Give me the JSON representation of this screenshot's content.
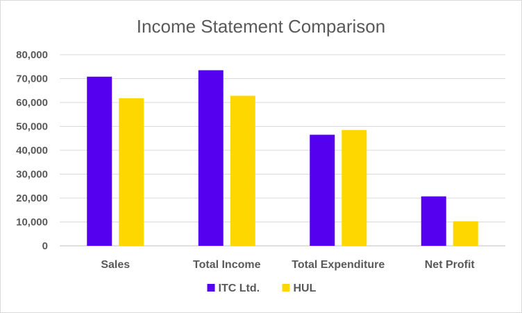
{
  "chart_data": {
    "type": "bar",
    "title": "Income Statement Comparison",
    "categories": [
      "Sales",
      "Total Income",
      "Total Expenditure",
      "Net Profit"
    ],
    "series": [
      {
        "name": "ITC Ltd.",
        "color": "#5500ee",
        "values": [
          70800,
          73500,
          46500,
          20700
        ]
      },
      {
        "name": "HUL",
        "color": "#ffd700",
        "values": [
          61800,
          62800,
          48500,
          10300
        ]
      }
    ],
    "ylim": [
      0,
      80000
    ],
    "yticks": [
      "0",
      "10,000",
      "20,000",
      "30,000",
      "40,000",
      "50,000",
      "60,000",
      "70,000",
      "80,000"
    ],
    "ytick_values": [
      0,
      10000,
      20000,
      30000,
      40000,
      50000,
      60000,
      70000,
      80000
    ],
    "grid": true,
    "legend_position": "bottom"
  }
}
